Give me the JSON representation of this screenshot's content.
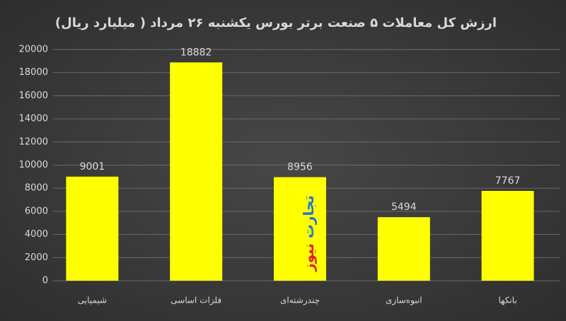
{
  "chart_data": {
    "type": "bar",
    "title": "ارزش کل معاملات ۵ صنعت برتر بورس یکشنبه ۲۶ مرداد ( میلیارد ریال)",
    "categories": [
      "شیمیایی",
      "فلزات اساسی",
      "چندرشته‌ای",
      "انبوه‌سازی",
      "بانکها"
    ],
    "values": [
      9001,
      18882,
      8956,
      5494,
      7767
    ],
    "color": "#ffff00",
    "ylim": [
      0,
      20000
    ],
    "yticks": [
      0,
      2000,
      4000,
      6000,
      8000,
      10000,
      12000,
      14000,
      16000,
      18000,
      20000
    ],
    "grid": true,
    "watermark": {
      "primary": "تجارت",
      "secondary": "نیوز"
    }
  }
}
